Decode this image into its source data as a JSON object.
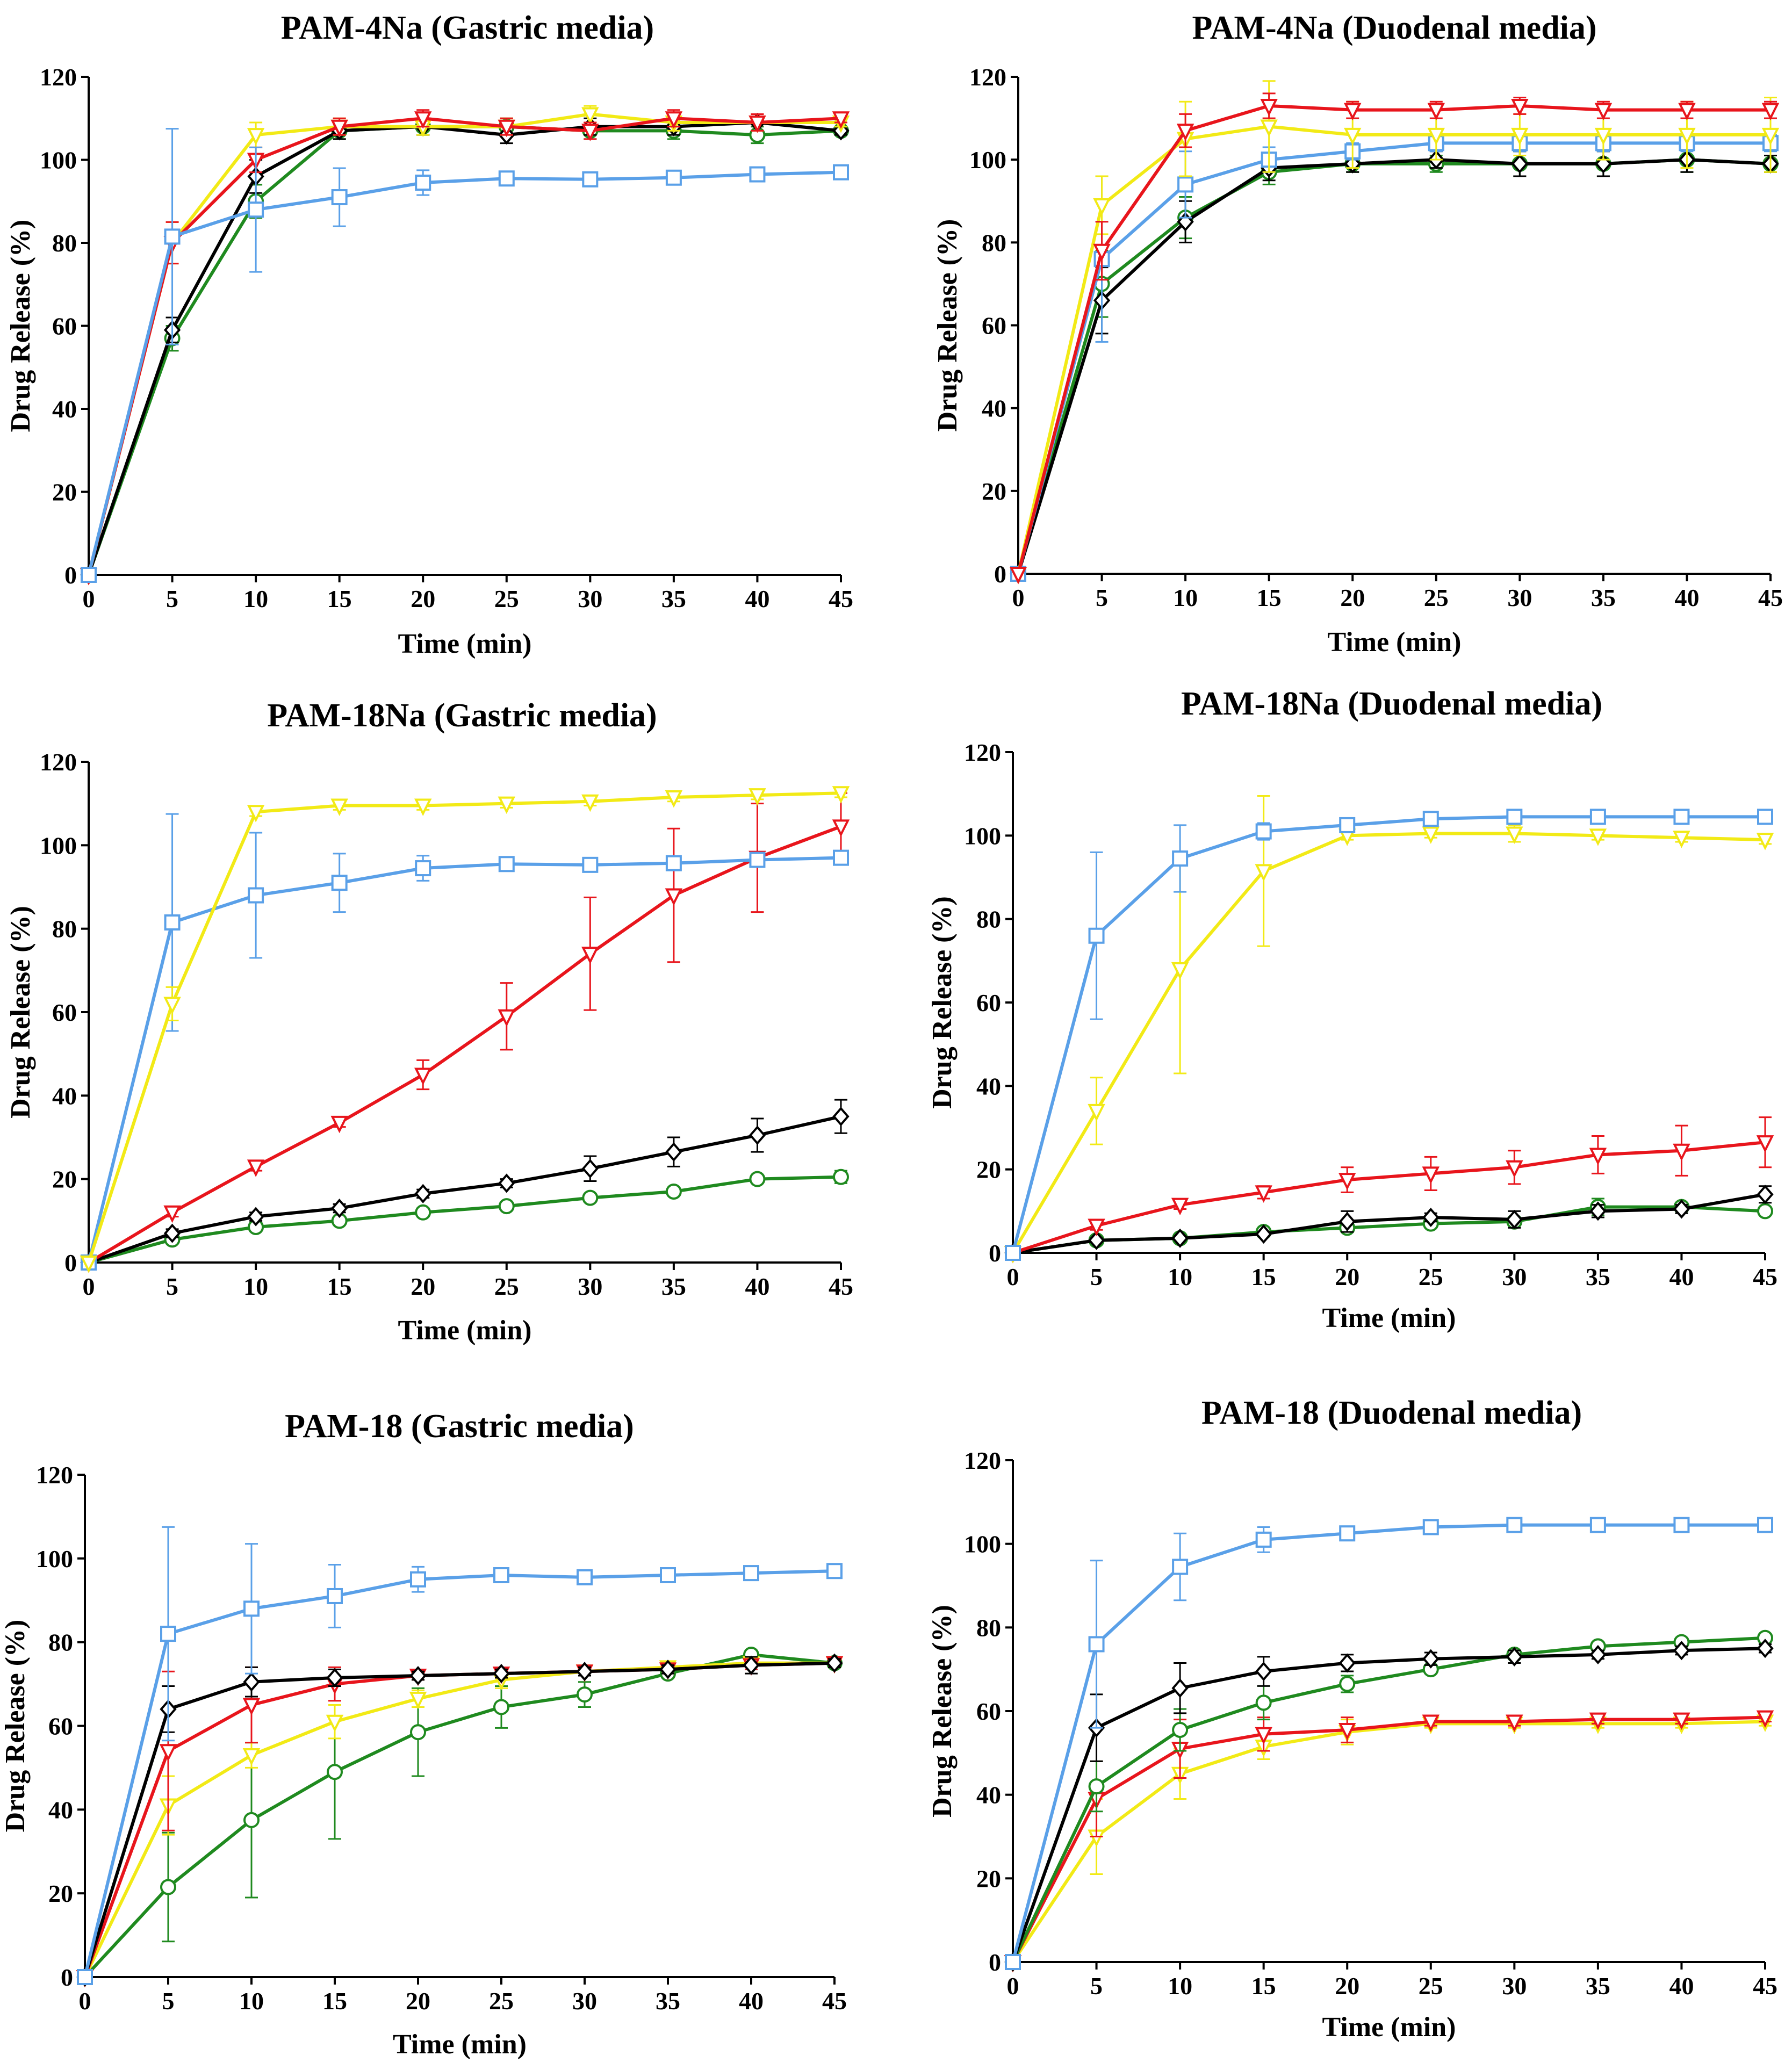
{
  "colors": {
    "blue": "#5aa0e8",
    "black": "#000000",
    "red": "#e8151c",
    "yellow": "#f2ea16",
    "green": "#1f8a1f"
  },
  "chart_data": [
    {
      "type": "line",
      "title": "PAM-4Na  (Gastric media)",
      "xlabel": "Time (min)",
      "ylabel": "Drug Release (%)",
      "xlim": [
        0,
        45
      ],
      "ylim": [
        0,
        120
      ],
      "xticks": [
        "0",
        "5",
        "10",
        "15",
        "20",
        "25",
        "30",
        "35",
        "40",
        "45"
      ],
      "yticks": [
        "0",
        "20",
        "40",
        "60",
        "80",
        "100",
        "120"
      ],
      "grid": false,
      "x": [
        0,
        5,
        10,
        15,
        20,
        25,
        30,
        35,
        40,
        45
      ],
      "series": [
        {
          "color": "green",
          "marker": "circle",
          "values": [
            0,
            57,
            90,
            107,
            108,
            108,
            107,
            107,
            106,
            107
          ],
          "err": [
            0,
            3,
            4,
            2,
            2,
            2,
            2,
            2,
            2,
            1
          ]
        },
        {
          "color": "black",
          "marker": "diamond",
          "values": [
            0,
            59,
            96,
            107,
            108,
            106,
            108,
            108,
            109,
            107
          ],
          "err": [
            0,
            3,
            4,
            2,
            2,
            2,
            2,
            2,
            2,
            1
          ]
        },
        {
          "color": "yellow",
          "marker": "triangle-down",
          "values": [
            0,
            80,
            106,
            108,
            108,
            108,
            111,
            109,
            109,
            109
          ],
          "err": [
            0,
            5,
            3,
            2,
            2,
            2,
            2,
            2,
            2,
            1
          ]
        },
        {
          "color": "red",
          "marker": "triangle-down",
          "values": [
            0,
            80,
            100,
            108,
            110,
            108,
            107,
            110,
            109,
            110
          ],
          "err": [
            0,
            5,
            3,
            2,
            2,
            2,
            2,
            2,
            2,
            1
          ]
        },
        {
          "color": "blue",
          "marker": "square",
          "values": [
            0,
            81.5,
            88,
            91,
            94.5,
            95.5,
            95.3,
            95.7,
            96.5,
            97
          ],
          "err": [
            0,
            26,
            15,
            7,
            3,
            1,
            1,
            1,
            1,
            1
          ]
        }
      ]
    },
    {
      "type": "line",
      "title": "PAM-4Na (Duodenal media)",
      "xlabel": "Time (min)",
      "ylabel": "Drug Release (%)",
      "xlim": [
        0,
        45
      ],
      "ylim": [
        0,
        120
      ],
      "xticks": [
        "0",
        "5",
        "10",
        "15",
        "20",
        "25",
        "30",
        "35",
        "40",
        "45"
      ],
      "yticks": [
        "0",
        "20",
        "40",
        "60",
        "80",
        "100",
        "120"
      ],
      "grid": false,
      "x": [
        0,
        5,
        10,
        15,
        20,
        25,
        30,
        35,
        40,
        45
      ],
      "series": [
        {
          "color": "green",
          "marker": "circle",
          "values": [
            0,
            70,
            86,
            97,
            99,
            99,
            99,
            99,
            100,
            99
          ],
          "err": [
            0,
            8,
            5,
            3,
            2,
            2,
            3,
            3,
            3,
            2
          ]
        },
        {
          "color": "black",
          "marker": "diamond",
          "values": [
            0,
            66,
            85,
            98,
            99,
            100,
            99,
            99,
            100,
            99
          ],
          "err": [
            0,
            8,
            5,
            3,
            2,
            2,
            3,
            3,
            3,
            2
          ]
        },
        {
          "color": "blue",
          "marker": "square",
          "values": [
            0,
            76,
            94,
            100,
            102,
            104,
            104,
            104,
            104,
            104
          ],
          "err": [
            0,
            20,
            8,
            3,
            2,
            2,
            2,
            2,
            2,
            2
          ]
        },
        {
          "color": "yellow",
          "marker": "triangle-down",
          "values": [
            0,
            89,
            105,
            108,
            106,
            106,
            106,
            106,
            106,
            106
          ],
          "err": [
            0,
            7,
            9,
            11,
            8,
            6,
            5,
            6,
            8,
            9
          ]
        },
        {
          "color": "red",
          "marker": "triangle-down",
          "values": [
            0,
            78,
            107,
            113,
            112,
            112,
            113,
            112,
            112,
            112
          ],
          "err": [
            0,
            7,
            4,
            3,
            2,
            2,
            2,
            2,
            2,
            2
          ]
        }
      ]
    },
    {
      "type": "line",
      "title": "PAM-18Na (Gastric media)",
      "xlabel": "Time (min)",
      "ylabel": "Drug Release (%)",
      "xlim": [
        0,
        45
      ],
      "ylim": [
        0,
        120
      ],
      "xticks": [
        "0",
        "5",
        "10",
        "15",
        "20",
        "25",
        "30",
        "35",
        "40",
        "45"
      ],
      "yticks": [
        "0",
        "20",
        "40",
        "60",
        "80",
        "100",
        "120"
      ],
      "grid": false,
      "x": [
        0,
        5,
        10,
        15,
        20,
        25,
        30,
        35,
        40,
        45
      ],
      "series": [
        {
          "color": "green",
          "marker": "circle",
          "values": [
            0,
            5.5,
            8.5,
            10,
            12,
            13.5,
            15.5,
            17,
            20,
            20.5
          ],
          "err": [
            0,
            1,
            1,
            1,
            1,
            1,
            1,
            1,
            1,
            1.5
          ]
        },
        {
          "color": "black",
          "marker": "diamond",
          "values": [
            0,
            7,
            11,
            13,
            16.5,
            19,
            22.5,
            26.5,
            30.5,
            35
          ],
          "err": [
            0,
            1,
            1,
            1,
            1,
            1,
            3,
            3.5,
            4,
            4
          ]
        },
        {
          "color": "red",
          "marker": "triangle-down",
          "values": [
            0,
            12,
            23,
            33.5,
            45,
            59,
            74,
            88,
            97,
            104.5
          ],
          "err": [
            0,
            1,
            1,
            1,
            3.5,
            8,
            13.5,
            16,
            13,
            8
          ]
        },
        {
          "color": "blue",
          "marker": "square",
          "values": [
            0,
            81.5,
            88,
            91,
            94.5,
            95.5,
            95.3,
            95.7,
            96.5,
            97
          ],
          "err": [
            0,
            26,
            15,
            7,
            3,
            1,
            1,
            1,
            1,
            1
          ]
        },
        {
          "color": "yellow",
          "marker": "triangle-down",
          "values": [
            0,
            62,
            108,
            109.5,
            109.5,
            110,
            110.5,
            111.5,
            112,
            112.5
          ],
          "err": [
            0,
            4,
            1,
            1,
            1,
            1,
            1,
            1,
            1,
            1
          ]
        }
      ]
    },
    {
      "type": "line",
      "title": "PAM-18Na (Duodenal media)",
      "xlabel": "Time (min)",
      "ylabel": "Drug Release (%)",
      "xlim": [
        0,
        45
      ],
      "ylim": [
        0,
        120
      ],
      "xticks": [
        "0",
        "5",
        "10",
        "15",
        "20",
        "25",
        "30",
        "35",
        "40",
        "45"
      ],
      "yticks": [
        "0",
        "20",
        "40",
        "60",
        "80",
        "100",
        "120"
      ],
      "grid": false,
      "x": [
        0,
        5,
        10,
        15,
        20,
        25,
        30,
        35,
        40,
        45
      ],
      "series": [
        {
          "color": "green",
          "marker": "circle",
          "values": [
            0,
            3,
            3.5,
            5,
            6,
            7,
            7.5,
            11,
            11,
            10
          ],
          "err": [
            0,
            0.5,
            0.5,
            0.5,
            1,
            1,
            1,
            2,
            1,
            1
          ]
        },
        {
          "color": "black",
          "marker": "diamond",
          "values": [
            0,
            3,
            3.5,
            4.5,
            7.5,
            8.5,
            8,
            10,
            10.5,
            14
          ],
          "err": [
            0,
            0.5,
            0.5,
            0.5,
            2.5,
            1,
            2,
            1.5,
            1,
            2
          ]
        },
        {
          "color": "red",
          "marker": "triangle-down",
          "values": [
            0,
            6.5,
            11.5,
            14.5,
            17.5,
            19,
            20.5,
            23.5,
            24.5,
            26.5
          ],
          "err": [
            0,
            1,
            1,
            1.5,
            3,
            4,
            4,
            4.5,
            6,
            6
          ]
        },
        {
          "color": "yellow",
          "marker": "triangle-down",
          "values": [
            0,
            34,
            68,
            91.5,
            100,
            100.5,
            100.5,
            100,
            99.5,
            99
          ],
          "err": [
            0,
            8,
            25,
            18,
            1,
            1,
            2,
            1,
            1,
            1
          ]
        },
        {
          "color": "blue",
          "marker": "square",
          "values": [
            0,
            76,
            94.5,
            101,
            102.5,
            104,
            104.5,
            104.5,
            104.5,
            104.5
          ],
          "err": [
            0,
            20,
            8,
            2,
            1,
            1,
            1,
            1,
            1,
            1
          ]
        }
      ]
    },
    {
      "type": "line",
      "title": "PAM-18 (Gastric media)",
      "xlabel": "Time (min)",
      "ylabel": "Drug Release (%)",
      "xlim": [
        0,
        45
      ],
      "ylim": [
        0,
        120
      ],
      "xticks": [
        "0",
        "5",
        "10",
        "15",
        "20",
        "25",
        "30",
        "35",
        "40",
        "45"
      ],
      "yticks": [
        "0",
        "20",
        "40",
        "60",
        "80",
        "100",
        "120"
      ],
      "grid": false,
      "x": [
        0,
        5,
        10,
        15,
        20,
        25,
        30,
        35,
        40,
        45
      ],
      "series": [
        {
          "color": "green",
          "marker": "circle",
          "values": [
            0,
            21.5,
            37.5,
            49,
            58.5,
            64.5,
            67.5,
            72.5,
            77,
            75
          ],
          "err": [
            0,
            13,
            18.5,
            16,
            10.5,
            5,
            3,
            1,
            1,
            1
          ]
        },
        {
          "color": "yellow",
          "marker": "triangle-down",
          "values": [
            0,
            41,
            53,
            61,
            66.5,
            71,
            73,
            74,
            75,
            75
          ],
          "err": [
            0,
            7,
            3,
            4,
            2,
            2,
            1,
            1,
            1,
            1
          ]
        },
        {
          "color": "red",
          "marker": "triangle-down",
          "values": [
            0,
            54,
            65,
            70,
            72,
            72.5,
            73,
            73.5,
            74.5,
            75
          ],
          "err": [
            0,
            19,
            9,
            4,
            1,
            1,
            1,
            1,
            1,
            1
          ]
        },
        {
          "color": "black",
          "marker": "diamond",
          "values": [
            0,
            64,
            70.5,
            71.5,
            72,
            72.5,
            73,
            73.5,
            74.5,
            75
          ],
          "err": [
            0,
            5.5,
            3.5,
            2,
            1,
            1,
            1,
            1,
            2,
            1
          ]
        },
        {
          "color": "blue",
          "marker": "square",
          "values": [
            0,
            82,
            88,
            91,
            95,
            96,
            95.5,
            96,
            96.5,
            97
          ],
          "err": [
            0,
            25.5,
            15.5,
            7.5,
            3,
            1,
            1,
            1,
            1,
            1
          ]
        }
      ]
    },
    {
      "type": "line",
      "title": "PAM-18 (Duodenal media)",
      "xlabel": "Time (min)",
      "ylabel": "Drug Release (%)",
      "xlim": [
        0,
        45
      ],
      "ylim": [
        0,
        120
      ],
      "xticks": [
        "0",
        "5",
        "10",
        "15",
        "20",
        "25",
        "30",
        "35",
        "40",
        "45"
      ],
      "yticks": [
        "0",
        "20",
        "40",
        "60",
        "80",
        "100",
        "120"
      ],
      "grid": false,
      "x": [
        0,
        5,
        10,
        15,
        20,
        25,
        30,
        35,
        40,
        45
      ],
      "series": [
        {
          "color": "yellow",
          "marker": "triangle-down",
          "values": [
            0,
            30,
            45,
            51.5,
            55,
            57,
            57,
            57,
            57,
            57.5
          ],
          "err": [
            0,
            9,
            6,
            3,
            3,
            1,
            1,
            1,
            1,
            1
          ]
        },
        {
          "color": "red",
          "marker": "triangle-down",
          "values": [
            0,
            39,
            51,
            54.5,
            55.5,
            57.5,
            57.5,
            58,
            58,
            58.5
          ],
          "err": [
            0,
            9,
            7,
            4,
            3,
            1,
            1,
            1,
            1,
            1
          ]
        },
        {
          "color": "green",
          "marker": "circle",
          "values": [
            0,
            42,
            55.5,
            62,
            66.5,
            70,
            73.5,
            75.5,
            76.5,
            77.5
          ],
          "err": [
            0,
            6,
            5,
            4,
            2,
            1,
            1,
            1,
            1,
            1
          ]
        },
        {
          "color": "black",
          "marker": "diamond",
          "values": [
            0,
            56,
            65.5,
            69.5,
            71.5,
            72.5,
            73,
            73.5,
            74.5,
            75
          ],
          "err": [
            0,
            8,
            6,
            3.5,
            2,
            1.5,
            1.5,
            1,
            1,
            1
          ]
        },
        {
          "color": "blue",
          "marker": "square",
          "values": [
            0,
            76,
            94.5,
            101,
            102.5,
            104,
            104.5,
            104.5,
            104.5,
            104.5
          ],
          "err": [
            0,
            20,
            8,
            3,
            1,
            1,
            1,
            1,
            1,
            1
          ]
        }
      ]
    }
  ]
}
